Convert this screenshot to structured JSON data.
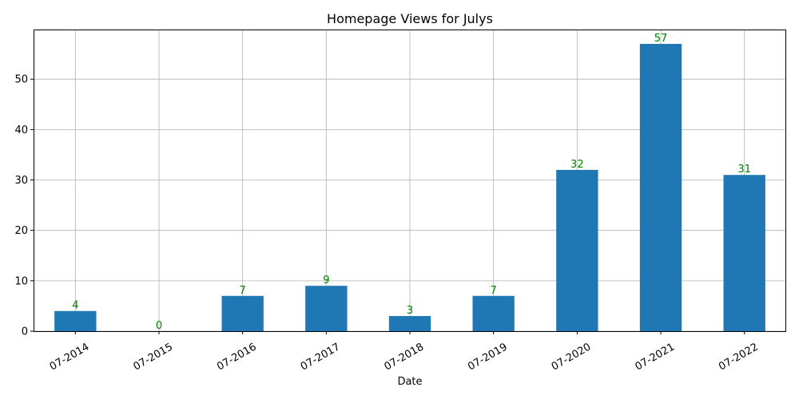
{
  "chart_data": {
    "type": "bar",
    "title": "Homepage Views for Julys",
    "xlabel": "Date",
    "ylabel": "",
    "categories": [
      "07-2014",
      "07-2015",
      "07-2016",
      "07-2017",
      "07-2018",
      "07-2019",
      "07-2020",
      "07-2021",
      "07-2022"
    ],
    "values": [
      4,
      0,
      7,
      9,
      3,
      7,
      32,
      57,
      31
    ],
    "data_labels": [
      "4",
      "0",
      "7",
      "9",
      "3",
      "7",
      "32",
      "57",
      "31"
    ],
    "ylim": [
      0,
      59.85
    ],
    "yticks": [
      0,
      10,
      20,
      30,
      40,
      50
    ],
    "ytick_labels": [
      "0",
      "10",
      "20",
      "30",
      "40",
      "50"
    ],
    "grid": true,
    "bar_color": "#1f77b4",
    "label_color": "#008000"
  }
}
